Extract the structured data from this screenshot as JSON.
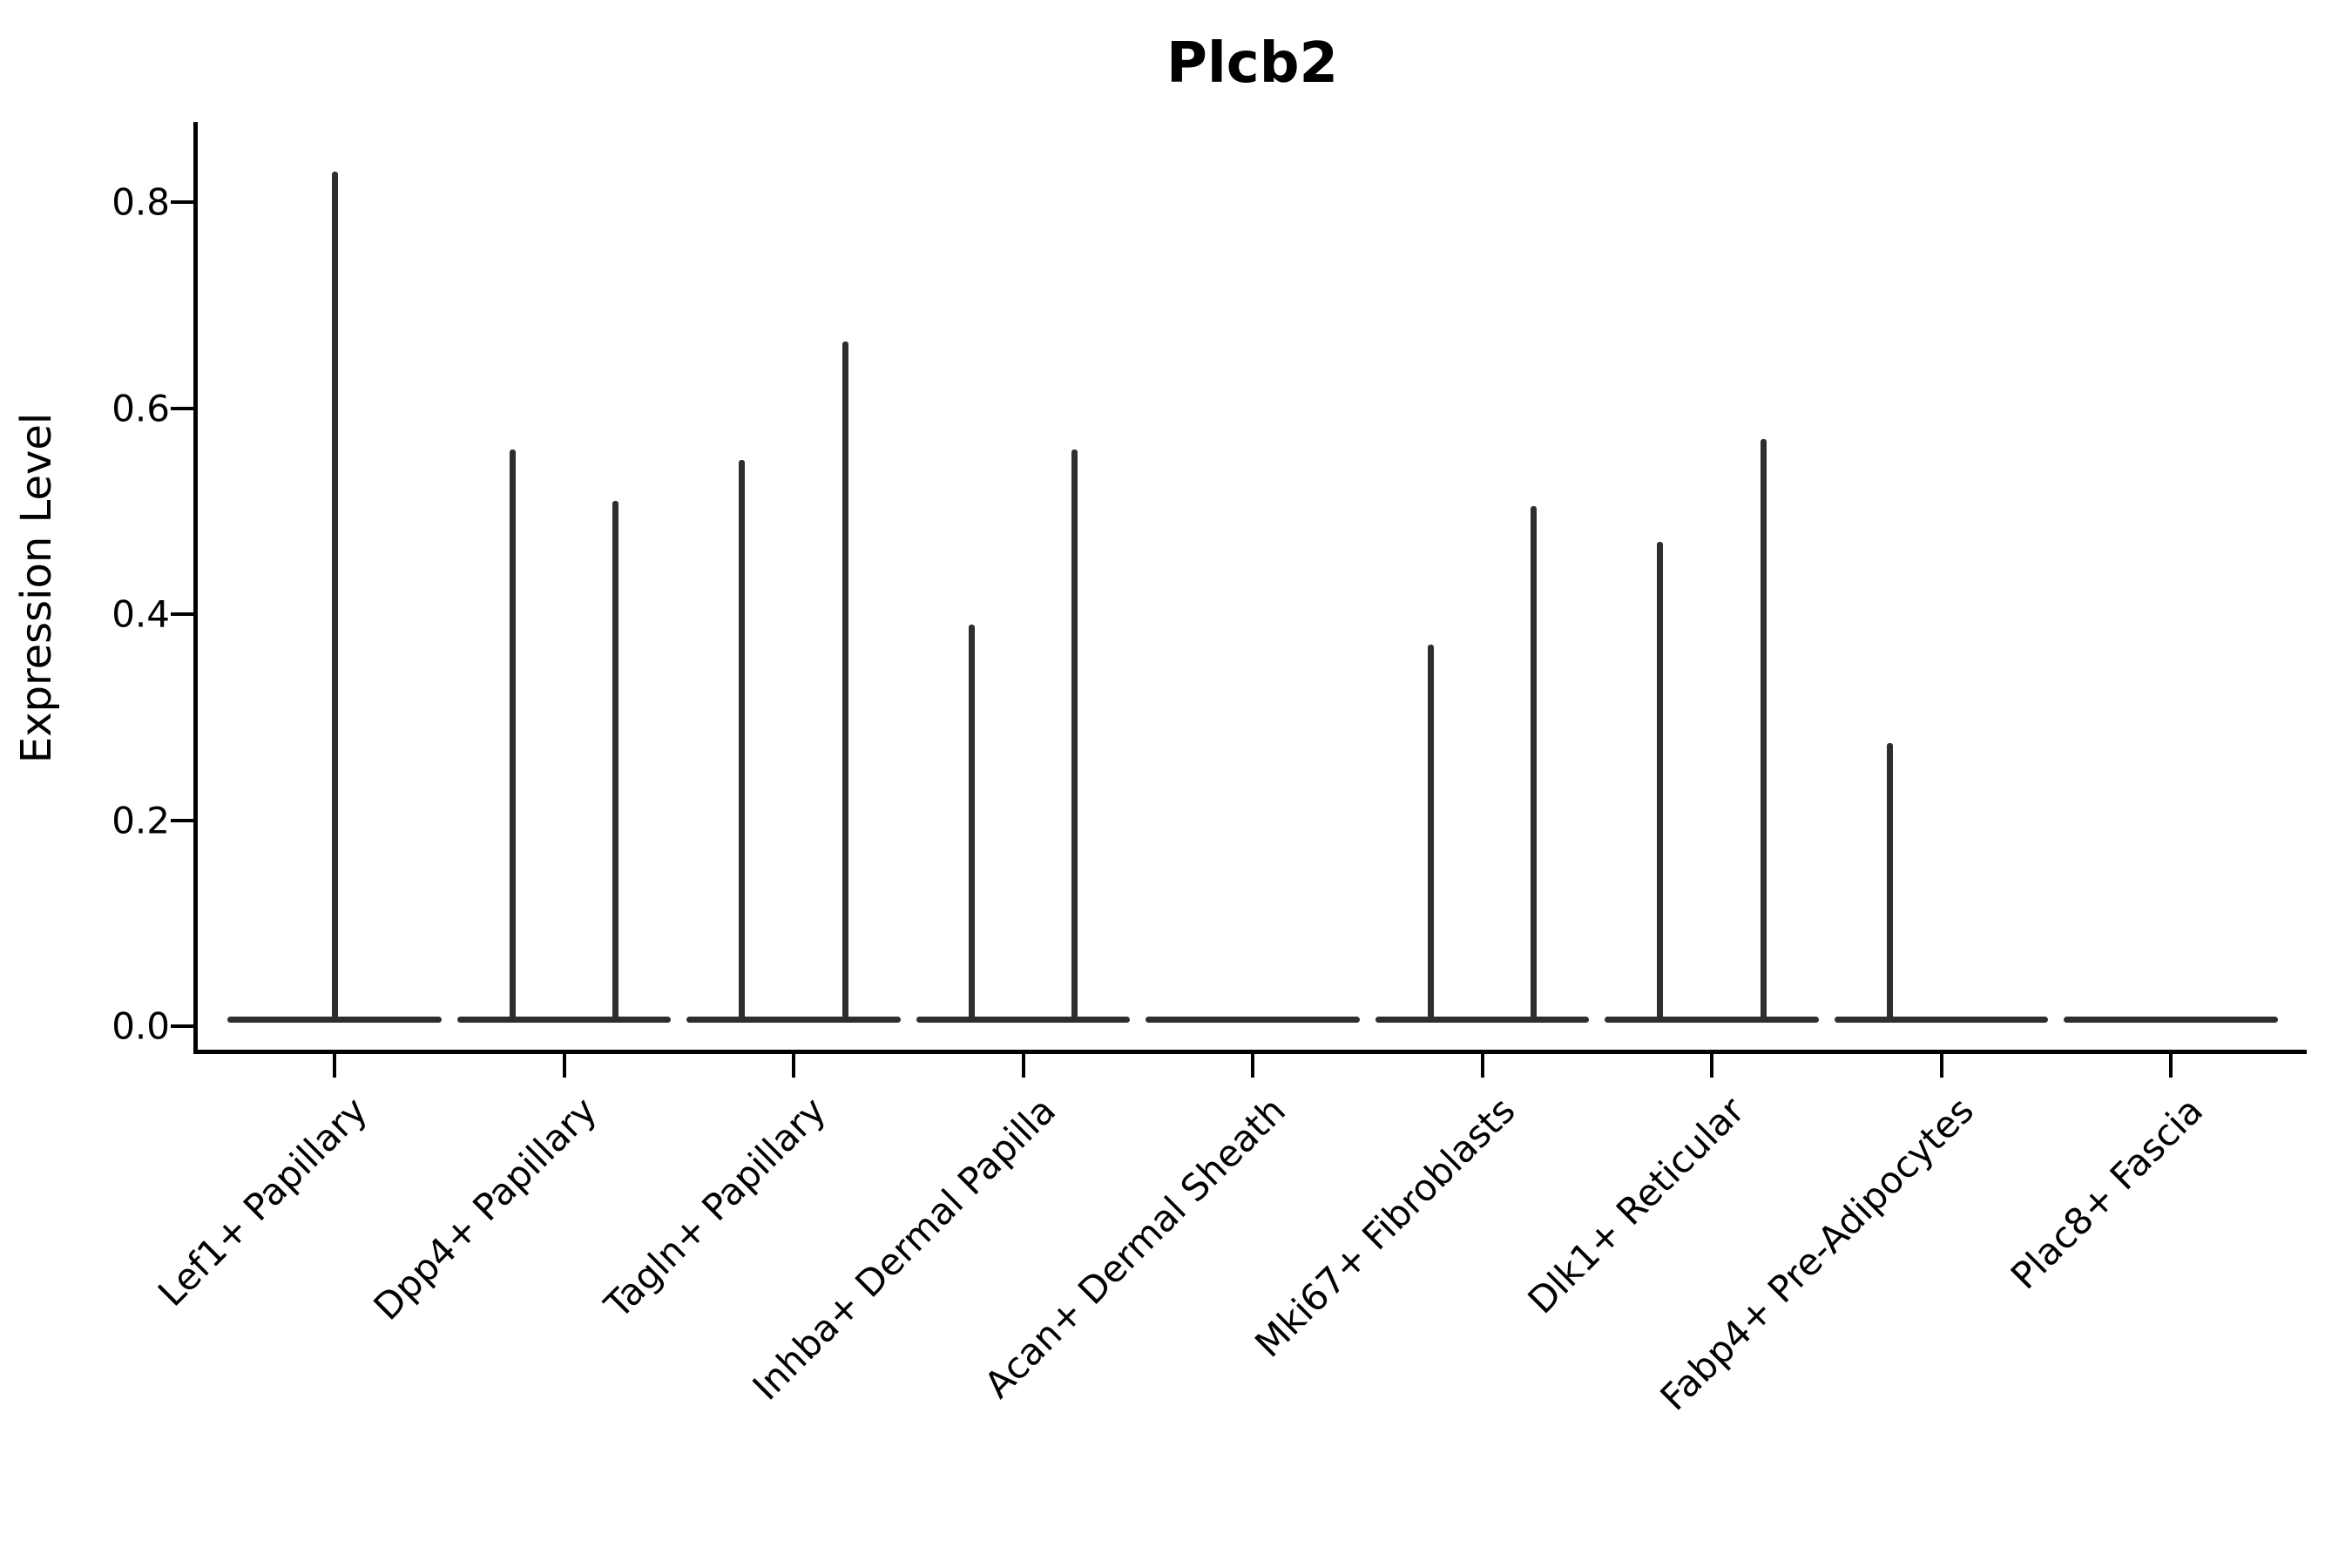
{
  "chart_data": {
    "type": "violin",
    "title": "Plcb2",
    "ylabel": "Expression Level",
    "xlabel": "",
    "grid": false,
    "legend": "none",
    "ylim": [
      -0.03,
      0.88
    ],
    "yticks": [
      {
        "value": 0.0,
        "label": "0.0"
      },
      {
        "value": 0.2,
        "label": "0.2"
      },
      {
        "value": 0.4,
        "label": "0.4"
      },
      {
        "value": 0.6,
        "label": "0.6"
      },
      {
        "value": 0.8,
        "label": "0.8"
      }
    ],
    "categories": [
      "Lef1+ Papillary",
      "Dpp4+ Papillary",
      "Tagln+ Papillary",
      "Inhba+ Dermal Papilla",
      "Acan+ Dermal Sheath",
      "Mki67+ Fibroblasts",
      "Dlk1+ Reticular",
      "Fabp4+ Pre-Adipocytes",
      "Plac8+ Fascia"
    ],
    "violins": [
      {
        "category": "Lef1+ Papillary",
        "base_at": 0.0,
        "spikes": [
          {
            "offset": 0.0,
            "max": 0.83
          }
        ]
      },
      {
        "category": "Dpp4+ Papillary",
        "base_at": 0.0,
        "spikes": [
          {
            "offset": -0.225,
            "max": 0.56
          },
          {
            "offset": 0.225,
            "max": 0.51
          }
        ]
      },
      {
        "category": "Tagln+ Papillary",
        "base_at": 0.0,
        "spikes": [
          {
            "offset": -0.225,
            "max": 0.55
          },
          {
            "offset": 0.225,
            "max": 0.665
          }
        ]
      },
      {
        "category": "Inhba+ Dermal Papilla",
        "base_at": 0.0,
        "spikes": [
          {
            "offset": -0.225,
            "max": 0.39
          },
          {
            "offset": 0.225,
            "max": 0.56
          }
        ]
      },
      {
        "category": "Acan+ Dermal Sheath",
        "base_at": 0.0,
        "spikes": []
      },
      {
        "category": "Mki67+ Fibroblasts",
        "base_at": 0.0,
        "spikes": [
          {
            "offset": -0.225,
            "max": 0.37
          },
          {
            "offset": 0.225,
            "max": 0.505
          }
        ]
      },
      {
        "category": "Dlk1+ Reticular",
        "base_at": 0.0,
        "spikes": [
          {
            "offset": -0.225,
            "max": 0.47
          },
          {
            "offset": 0.225,
            "max": 0.57
          }
        ]
      },
      {
        "category": "Fabp4+ Pre-Adipocytes",
        "base_at": 0.0,
        "spikes": [
          {
            "offset": -0.225,
            "max": 0.275
          }
        ]
      },
      {
        "category": "Plac8+ Fascia",
        "base_at": 0.0,
        "spikes": []
      }
    ],
    "colors": {
      "violin": "#2e2e2e",
      "axis": "#000000",
      "text": "#000000",
      "background": "#ffffff"
    }
  }
}
